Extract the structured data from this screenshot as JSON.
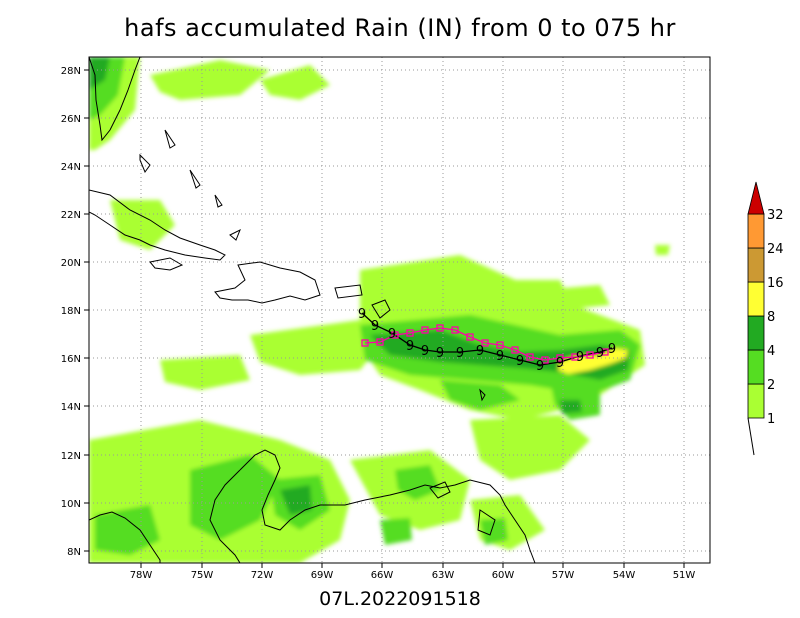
{
  "title": "hafs accumulated Rain (IN) from 0 to 075 hr",
  "caption": "07L.2022091518",
  "map": {
    "lat_labels": [
      "28N",
      "26N",
      "24N",
      "22N",
      "20N",
      "18N",
      "16N",
      "14N",
      "12N",
      "10N",
      "8N"
    ],
    "lon_labels": [
      "78W",
      "75W",
      "72W",
      "69W",
      "66W",
      "63W",
      "60W",
      "57W",
      "54W",
      "51W"
    ],
    "grid": "dotted",
    "storm_symbol": "9"
  },
  "colorbar": {
    "levels": [
      "1",
      "2",
      "4",
      "8",
      "16",
      "24",
      "32"
    ],
    "colors": [
      "#aaff33",
      "#55dd22",
      "#22aa22",
      "#ffff33",
      "#cc9933",
      "#ff9933",
      "#cc0000"
    ],
    "orientation": "vertical",
    "position": "right"
  }
}
